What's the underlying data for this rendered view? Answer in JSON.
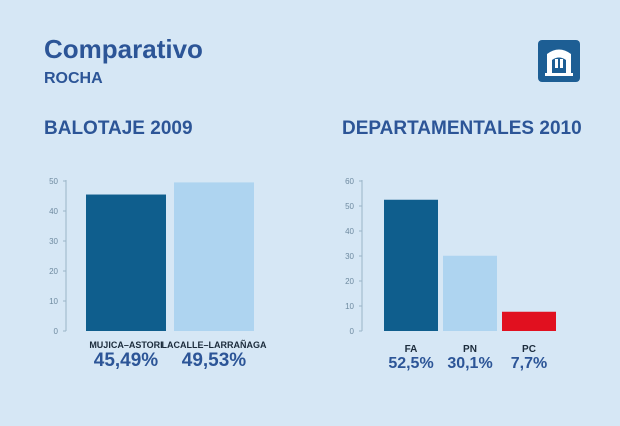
{
  "header": {
    "title": "Comparativo",
    "subtitle": "ROCHA",
    "logo": "building-logo-icon"
  },
  "colors": {
    "dark_blue": "#0f5e8d",
    "light_blue": "#aed4f0",
    "red": "#e1101f",
    "label_blue": "#2c5597",
    "axis": "#9ab4c8"
  },
  "chart_data": [
    {
      "type": "bar",
      "title": "BALOTAJE 2009",
      "categories": [
        "MUJICA–ASTORI",
        "LACALLE–LARRAÑAGA"
      ],
      "values": [
        45.49,
        49.53
      ],
      "value_labels": [
        "45,49%",
        "49,53%"
      ],
      "bar_colors": [
        "dark_blue",
        "light_blue"
      ],
      "ylim": [
        0,
        50
      ],
      "yticks": [
        "0",
        "10",
        "20",
        "30",
        "40",
        "50"
      ],
      "xlabel": "",
      "ylabel": ""
    },
    {
      "type": "bar",
      "title": "DEPARTAMENTALES 2010",
      "categories": [
        "FA",
        "PN",
        "PC"
      ],
      "values": [
        52.5,
        30.1,
        7.7
      ],
      "value_labels": [
        "52,5%",
        "30,1%",
        "7,7%"
      ],
      "bar_colors": [
        "dark_blue",
        "light_blue",
        "red"
      ],
      "ylim": [
        0,
        60
      ],
      "yticks": [
        "0",
        "10",
        "20",
        "30",
        "40",
        "50",
        "60"
      ],
      "xlabel": "",
      "ylabel": ""
    }
  ]
}
